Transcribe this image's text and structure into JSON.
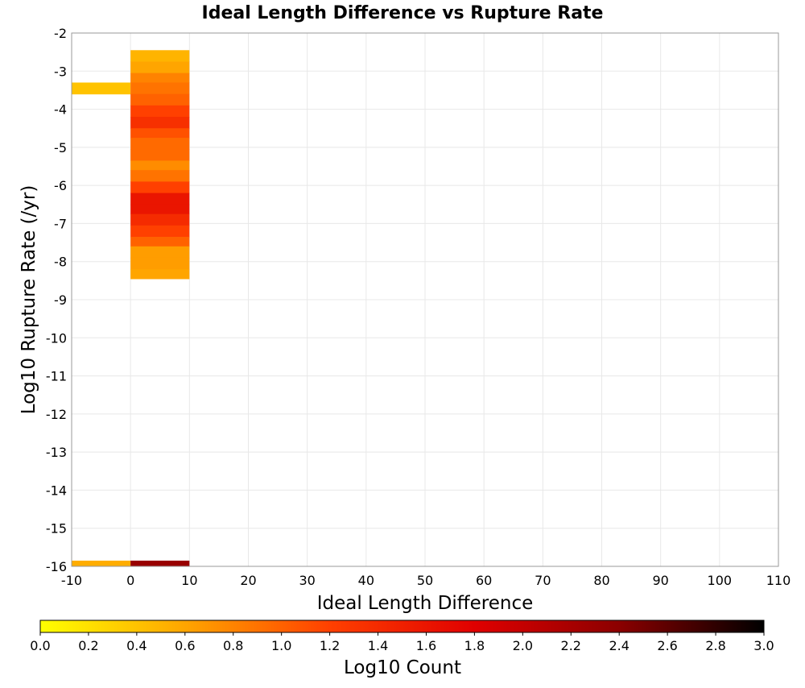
{
  "chart_data": {
    "type": "heatmap",
    "title": "Ideal Length Difference vs Rupture Rate",
    "xlabel": "Ideal Length Difference",
    "ylabel": "Log10 Rupture Rate (/yr)",
    "xlim": [
      -10,
      110
    ],
    "ylim": [
      -16,
      -2
    ],
    "xticks": [
      "-10",
      "0",
      "10",
      "20",
      "30",
      "40",
      "50",
      "60",
      "70",
      "80",
      "90",
      "100",
      "110"
    ],
    "yticks": [
      "-2",
      "-3",
      "-4",
      "-5",
      "-6",
      "-7",
      "-8",
      "-9",
      "-10",
      "-11",
      "-12",
      "-13",
      "-14",
      "-15",
      "-16"
    ],
    "grid": true,
    "colorbar": {
      "label": "Log10 Count",
      "range": [
        0,
        3
      ],
      "ticks": [
        "0.0",
        "0.2",
        "0.4",
        "0.6",
        "0.8",
        "1.0",
        "1.2",
        "1.4",
        "1.6",
        "1.8",
        "2.0",
        "2.2",
        "2.4",
        "2.6",
        "2.8",
        "3.0"
      ],
      "placement": "bottom",
      "colors": [
        "#ffff00",
        "#ffa500",
        "#ff4000",
        "#e00000",
        "#8b0000",
        "#000000"
      ]
    },
    "cells": [
      {
        "x0": -10,
        "x1": 0,
        "y0": -3.6,
        "y1": -3.3,
        "value": 0.4
      },
      {
        "x0": 0,
        "x1": 10,
        "y0": -2.75,
        "y1": -2.45,
        "value": 0.5
      },
      {
        "x0": 0,
        "x1": 10,
        "y0": -3.05,
        "y1": -2.75,
        "value": 0.6
      },
      {
        "x0": 0,
        "x1": 10,
        "y0": -3.3,
        "y1": -3.05,
        "value": 0.8
      },
      {
        "x0": 0,
        "x1": 10,
        "y0": -3.6,
        "y1": -3.3,
        "value": 0.9
      },
      {
        "x0": 0,
        "x1": 10,
        "y0": -3.9,
        "y1": -3.6,
        "value": 1.0
      },
      {
        "x0": 0,
        "x1": 10,
        "y0": -4.2,
        "y1": -3.9,
        "value": 1.2
      },
      {
        "x0": 0,
        "x1": 10,
        "y0": -4.5,
        "y1": -4.2,
        "value": 1.35
      },
      {
        "x0": 0,
        "x1": 10,
        "y0": -4.75,
        "y1": -4.5,
        "value": 1.1
      },
      {
        "x0": 0,
        "x1": 10,
        "y0": -5.05,
        "y1": -4.75,
        "value": 0.95
      },
      {
        "x0": 0,
        "x1": 10,
        "y0": -5.35,
        "y1": -5.05,
        "value": 0.95
      },
      {
        "x0": 0,
        "x1": 10,
        "y0": -5.6,
        "y1": -5.35,
        "value": 0.75
      },
      {
        "x0": 0,
        "x1": 10,
        "y0": -5.9,
        "y1": -5.6,
        "value": 0.9
      },
      {
        "x0": 0,
        "x1": 10,
        "y0": -6.2,
        "y1": -5.9,
        "value": 1.2
      },
      {
        "x0": 0,
        "x1": 10,
        "y0": -6.5,
        "y1": -6.2,
        "value": 1.6
      },
      {
        "x0": 0,
        "x1": 10,
        "y0": -6.75,
        "y1": -6.5,
        "value": 1.6
      },
      {
        "x0": 0,
        "x1": 10,
        "y0": -7.05,
        "y1": -6.75,
        "value": 1.4
      },
      {
        "x0": 0,
        "x1": 10,
        "y0": -7.35,
        "y1": -7.05,
        "value": 1.2
      },
      {
        "x0": 0,
        "x1": 10,
        "y0": -7.6,
        "y1": -7.35,
        "value": 1.0
      },
      {
        "x0": 0,
        "x1": 10,
        "y0": -7.9,
        "y1": -7.6,
        "value": 0.65
      },
      {
        "x0": 0,
        "x1": 10,
        "y0": -8.2,
        "y1": -7.9,
        "value": 0.65
      },
      {
        "x0": 0,
        "x1": 10,
        "y0": -8.45,
        "y1": -8.2,
        "value": 0.6
      },
      {
        "x0": -10,
        "x1": 0,
        "y0": -16,
        "y1": -15.85,
        "value": 0.55
      },
      {
        "x0": 0,
        "x1": 10,
        "y0": -16,
        "y1": -15.85,
        "value": 2.3
      }
    ]
  }
}
